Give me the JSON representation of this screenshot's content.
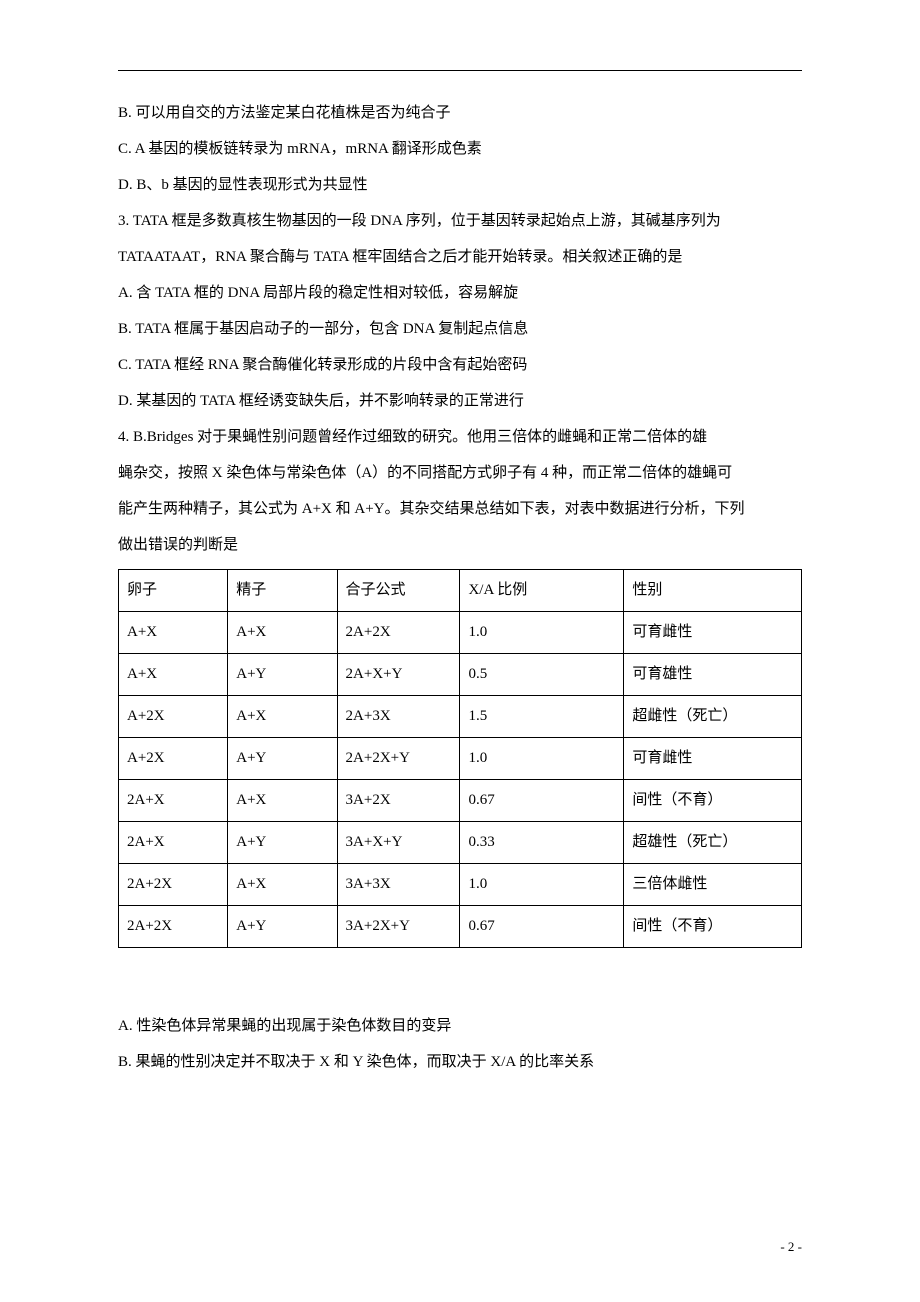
{
  "options_top": {
    "b": "B. 可以用自交的方法鉴定某白花植株是否为纯合子",
    "c": "C. A 基因的模板链转录为 mRNA，mRNA 翻译形成色素",
    "d": "D. B、b 基因的显性表现形式为共显性"
  },
  "q3": {
    "stem1": "3. TATA 框是多数真核生物基因的一段 DNA 序列，位于基因转录起始点上游，其碱基序列为",
    "stem2": "TATAATAAT，RNA 聚合酶与 TATA 框牢固结合之后才能开始转录。相关叙述正确的是",
    "a": "A. 含 TATA 框的 DNA 局部片段的稳定性相对较低，容易解旋",
    "b": "B. TATA 框属于基因启动子的一部分，包含 DNA 复制起点信息",
    "c": "C. TATA 框经 RNA 聚合酶催化转录形成的片段中含有起始密码",
    "d": "D. 某基因的 TATA 框经诱变缺失后，并不影响转录的正常进行"
  },
  "q4": {
    "stem1": "4. B.Bridges 对于果蝇性别问题曾经作过细致的研究。他用三倍体的雌蝇和正常二倍体的雄",
    "stem2": "蝇杂交，按照 X 染色体与常染色体（A）的不同搭配方式卵子有 4 种，而正常二倍体的雄蝇可",
    "stem3": "能产生两种精子，其公式为 A+X 和 A+Y。其杂交结果总结如下表，对表中数据进行分析，下列",
    "stem4": "做出错误的判断是"
  },
  "table": {
    "headers": [
      "卵子",
      "精子",
      "合子公式",
      "X/A 比例",
      "性别"
    ],
    "rows": [
      [
        "A+X",
        "A+X",
        "2A+2X",
        "1.0",
        "可育雌性"
      ],
      [
        "A+X",
        "A+Y",
        "2A+X+Y",
        "0.5",
        "可育雄性"
      ],
      [
        "A+2X",
        "A+X",
        "2A+3X",
        "1.5",
        "超雌性（死亡）"
      ],
      [
        "A+2X",
        "A+Y",
        "2A+2X+Y",
        "1.0",
        "可育雌性"
      ],
      [
        "2A+X",
        "A+X",
        "3A+2X",
        "0.67",
        "间性（不育）"
      ],
      [
        "2A+X",
        "A+Y",
        "3A+X+Y",
        "0.33",
        "超雄性（死亡）"
      ],
      [
        "2A+2X",
        "A+X",
        "3A+3X",
        "1.0",
        "三倍体雌性"
      ],
      [
        "2A+2X",
        "A+Y",
        "3A+2X+Y",
        "0.67",
        "间性（不育）"
      ]
    ]
  },
  "options_bottom": {
    "a": "A. 性染色体异常果蝇的出现属于染色体数目的变异",
    "b": "B. 果蝇的性别决定并不取决于 X 和 Y 染色体，而取决于 X/A 的比率关系"
  },
  "page_number": "- 2 -"
}
